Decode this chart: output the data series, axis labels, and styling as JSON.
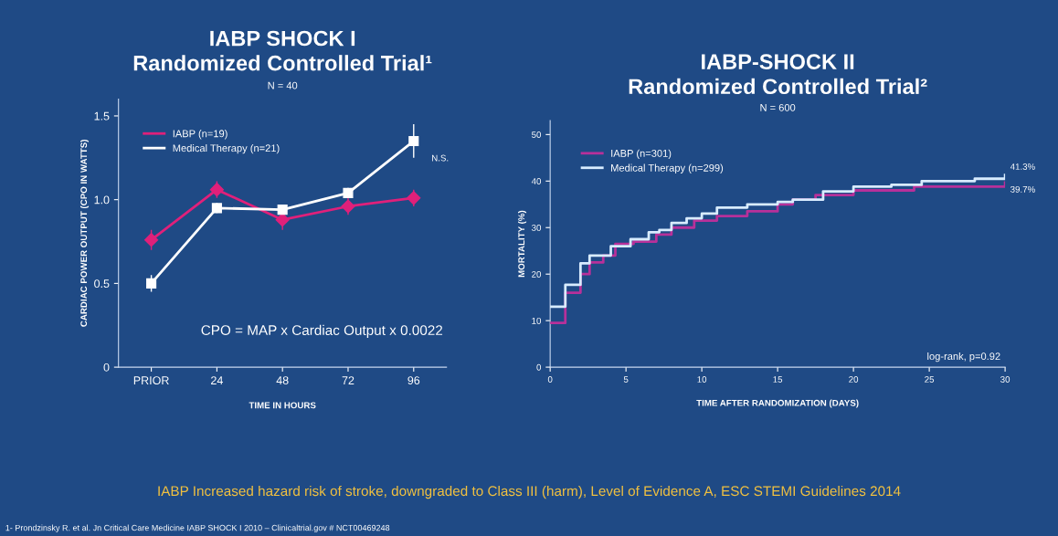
{
  "chart_data": [
    {
      "type": "line",
      "title": "IABP SHOCK I\nRandomized Controlled Trial¹",
      "subtitle": "N = 40",
      "xlabel": "TIME IN HOURS",
      "ylabel": "CARDIAC POWER OUTPUT (CPO IN WATTS)",
      "categories": [
        "PRIOR",
        "24",
        "48",
        "72",
        "96"
      ],
      "series": [
        {
          "name": "IABP (n=19)",
          "color": "#e0207a",
          "marker": "diamond",
          "values": [
            0.76,
            1.06,
            0.88,
            0.96,
            1.01
          ],
          "errors": [
            0.06,
            0.05,
            0.06,
            0.05,
            0.05
          ]
        },
        {
          "name": "Medical Therapy (n=21)",
          "color": "#ffffff",
          "marker": "square",
          "values": [
            0.5,
            0.95,
            0.94,
            1.04,
            1.35
          ],
          "errors": [
            0.05,
            0.03,
            0.03,
            0.03,
            0.1
          ]
        }
      ],
      "ylim": [
        0,
        1.6
      ],
      "yticks": [
        0,
        0.5,
        {
          "value": 1,
          "label": "1.0"
        },
        1.5
      ],
      "grid": false,
      "legend": "top left",
      "annotations": [
        {
          "text": "N.S.",
          "x": "96",
          "y": 1.35
        },
        "CPO = MAP x Cardiac Output x 0.0022",
        "IABP Increased hazard risk of stroke, downgraded to Class III (harm), Level of Evidence A, ESC STEMI Guidelines 2014",
        "1- Prondzinsky R. et al. Jn Critical Care Medicine IABP SHOCK I 2010 – Clinicaltrial.gov # NCT00469248"
      ]
    },
    {
      "type": "step",
      "title": "IABP-SHOCK II\nRandomized Controlled Trial²",
      "subtitle": "N = 600",
      "xlabel": "TIME AFTER RANDOMIZATION (DAYS)",
      "ylabel": "MORTALITY (%)",
      "series": [
        {
          "name": "IABP (n=301)",
          "color": "#b8309a",
          "x": [
            0,
            1,
            2,
            2.6,
            3.5,
            4.3,
            5.5,
            7,
            8,
            9.5,
            11,
            13,
            15,
            16,
            17.5,
            20,
            24,
            30
          ],
          "values": [
            9.5,
            16,
            20,
            22.5,
            24,
            26.5,
            27,
            28.5,
            30,
            31.5,
            32.5,
            33.5,
            35,
            36,
            37,
            38,
            38.8,
            39.7
          ]
        },
        {
          "name": "Medical Therapy (n=299)",
          "color": "#d8ecff",
          "x": [
            0,
            1,
            2,
            2.6,
            4,
            5.3,
            6.5,
            7.2,
            8,
            9,
            10,
            11,
            13,
            15,
            16,
            18,
            20,
            22.5,
            24.5,
            28,
            30
          ],
          "values": [
            13,
            17.7,
            22.3,
            24,
            26,
            27.5,
            29,
            29.5,
            31,
            32,
            33,
            34.3,
            35,
            35.5,
            36,
            37.8,
            38.8,
            39.2,
            40,
            40.5,
            41.3
          ]
        }
      ],
      "xlim": [
        0,
        30
      ],
      "xticks": [
        0,
        5,
        10,
        15,
        20,
        25,
        30
      ],
      "ylim": [
        0,
        53
      ],
      "yticks": [
        0,
        10,
        20,
        30,
        40,
        50
      ],
      "grid": false,
      "legend": "top left",
      "annotations": [
        {
          "text": "41.3%",
          "x": 30,
          "y": 41.3
        },
        {
          "text": "39.7%",
          "x": 30,
          "y": 39.7
        },
        "log-rank, p=0.92"
      ]
    }
  ]
}
